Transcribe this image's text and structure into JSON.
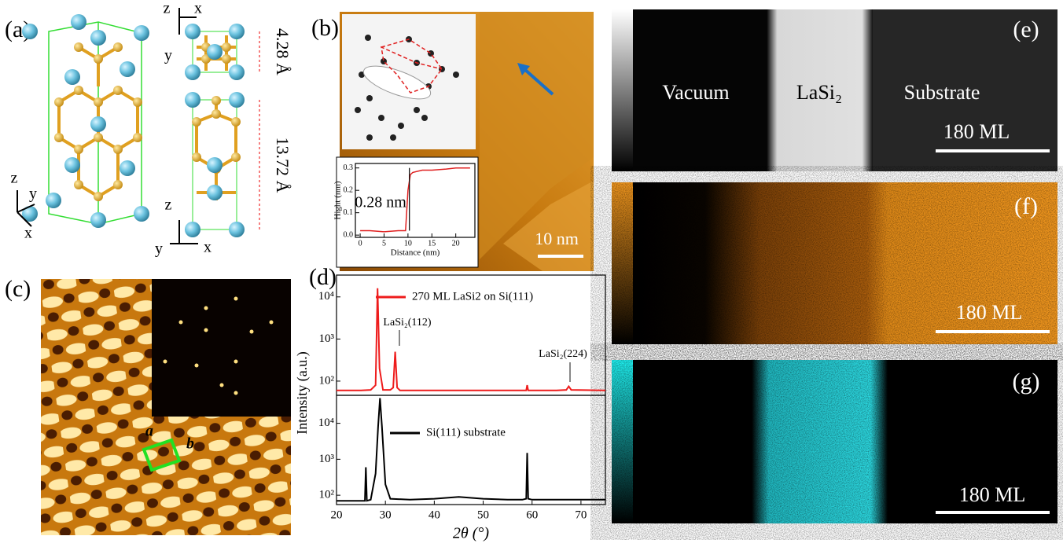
{
  "panels": {
    "a": {
      "label": "(a)",
      "axes_left": [
        "z",
        "y",
        "x"
      ],
      "axes_top": [
        "z",
        "x",
        "y"
      ],
      "axes_bottom": [
        "z",
        "x",
        "y"
      ],
      "spacing_top": "4.28 Å",
      "spacing_bottom": "13.72 Å"
    },
    "b": {
      "label": "(b)",
      "step_height": "0.28 nm",
      "scale_bar": "10 nm"
    },
    "c": {
      "label": "(c)",
      "lattice_a": "a",
      "lattice_b": "b"
    },
    "d": {
      "label": "(d)",
      "annotation_112": "LaSi₂(112)",
      "annotation_224": "LaSi₂(224)"
    },
    "e": {
      "label": "(e)",
      "region_1": "Vacuum",
      "region_2": "LaSi₂",
      "region_3": "Substrate",
      "scale_bar": "180 ML"
    },
    "f": {
      "label": "(f)",
      "scale_bar": "180 ML"
    },
    "g": {
      "label": "(g)",
      "scale_bar": "180 ML"
    }
  },
  "chart_data": [
    {
      "type": "line",
      "x_label": "Distance (nm)",
      "y_label": "Hight (nm)",
      "xlim": [
        -1,
        24
      ],
      "ylim": [
        -0.01,
        0.32
      ],
      "xticks": [
        0,
        5,
        10,
        15,
        20
      ],
      "yticks": [
        {
          "value": 0,
          "label": "0.0"
        },
        0.1,
        0.2,
        0.3
      ],
      "series": [
        {
          "name": null,
          "color": "#e02020",
          "x": [
            0,
            2,
            5,
            8,
            9.5,
            10,
            10.5,
            11,
            13,
            15,
            18,
            20,
            23
          ],
          "values": [
            0.02,
            0.02,
            0.015,
            0.02,
            0.02,
            0.2,
            0.27,
            0.28,
            0.29,
            0.29,
            0.295,
            0.3,
            0.3
          ]
        }
      ]
    },
    {
      "type": "line",
      "log_scale": true,
      "y_label": "Intensity (a.u.)",
      "xlim": [
        20,
        75
      ],
      "ylim": [
        46,
        33000
      ],
      "yticks": [
        {
          "value": 100,
          "label": "10²"
        },
        {
          "value": 1000,
          "label": "10³"
        },
        {
          "value": 10000,
          "label": "10⁴"
        }
      ],
      "series": [
        {
          "name": "270 ML LaSi2 on Si(111)",
          "color": "#ee1c1c",
          "x": [
            20,
            25,
            27,
            28,
            28.4,
            28.8,
            29.5,
            31,
            31.6,
            32,
            32.4,
            33,
            40,
            50,
            58.8,
            59,
            59.2,
            65,
            67,
            67.5,
            68,
            75
          ],
          "values": [
            60,
            60,
            62,
            80,
            16000,
            200,
            62,
            62,
            70,
            500,
            70,
            60,
            60,
            60,
            60,
            80,
            60,
            60,
            62,
            75,
            62,
            60
          ]
        }
      ]
    },
    {
      "type": "line",
      "log_scale": true,
      "x_label": "2θ (°)",
      "xlim": [
        20,
        75
      ],
      "ylim": [
        55,
        60000
      ],
      "xticks": [
        20,
        30,
        40,
        50,
        60,
        70
      ],
      "yticks": [
        {
          "value": 100,
          "label": "10²"
        },
        {
          "value": 1000,
          "label": "10³"
        },
        {
          "value": 10000,
          "label": "10⁴"
        }
      ],
      "series": [
        {
          "name": "Si(111) substrate",
          "color": "#000000",
          "x": [
            20,
            25,
            25.8,
            26,
            26.2,
            27,
            28,
            28.5,
            28.9,
            29.3,
            30,
            31,
            35,
            40,
            45,
            50,
            55,
            58,
            58.8,
            59,
            59.2,
            60,
            65,
            70,
            75
          ],
          "values": [
            70,
            70,
            70,
            600,
            70,
            75,
            400,
            8000,
            50000,
            8000,
            200,
            80,
            75,
            80,
            90,
            80,
            75,
            75,
            80,
            1500,
            80,
            75,
            75,
            75,
            75
          ]
        }
      ]
    }
  ]
}
